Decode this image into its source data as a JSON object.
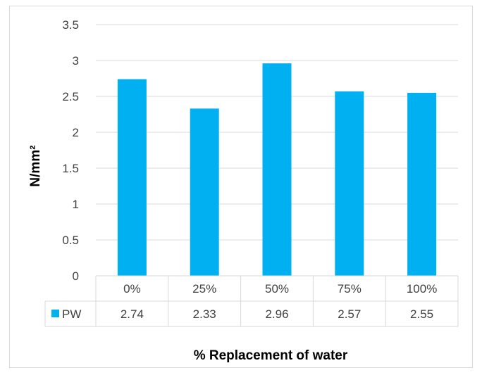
{
  "chart_data": {
    "type": "bar",
    "categories": [
      "0%",
      "25%",
      "50%",
      "75%",
      "100%"
    ],
    "series": [
      {
        "name": "PW",
        "values": [
          2.74,
          2.33,
          2.96,
          2.57,
          2.55
        ],
        "color": "#00b0f0"
      }
    ],
    "data_table_labels": [
      "2.74",
      "2.33",
      "2.96",
      "2.57",
      "2.55"
    ],
    "ylabel": "N/mm²",
    "xlabel": "% Replacement of water",
    "ylim": [
      0,
      3.5
    ],
    "yticks": [
      "0",
      "0.5",
      "1",
      "1.5",
      "2",
      "2.5",
      "3",
      "3.5"
    ],
    "grid": true,
    "legend": "data-table"
  }
}
